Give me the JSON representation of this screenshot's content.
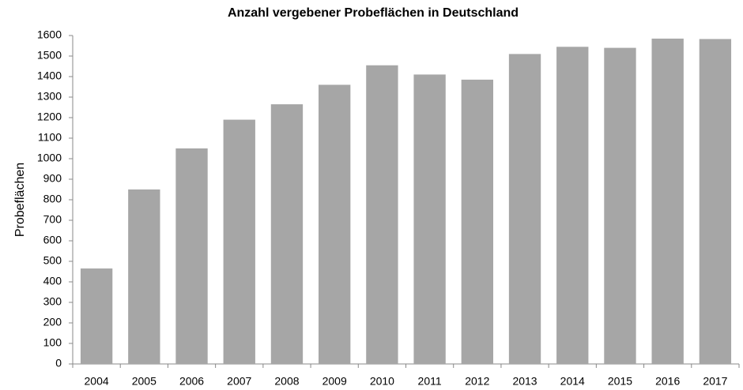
{
  "chart_data": {
    "type": "bar",
    "title": "Anzahl vergebener Probeflächen in Deutschland",
    "y_label": "Probeflächen",
    "categories": [
      "2004",
      "2005",
      "2006",
      "2007",
      "2008",
      "2009",
      "2010",
      "2011",
      "2012",
      "2013",
      "2014",
      "2015",
      "2016",
      "2017"
    ],
    "values": [
      465,
      850,
      1050,
      1190,
      1265,
      1360,
      1455,
      1410,
      1385,
      1510,
      1545,
      1540,
      1585,
      1583
    ],
    "color": "#a6a6a6",
    "ylim": [
      0,
      1600
    ],
    "yticks": [
      0,
      100,
      200,
      300,
      400,
      500,
      600,
      700,
      800,
      900,
      1000,
      1100,
      1200,
      1300,
      1400,
      1500,
      1600
    ],
    "grid": false
  }
}
